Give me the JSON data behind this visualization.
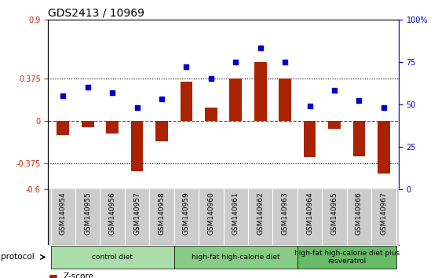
{
  "title": "GDS2413 / 10969",
  "samples": [
    "GSM140954",
    "GSM140955",
    "GSM140956",
    "GSM140957",
    "GSM140958",
    "GSM140959",
    "GSM140960",
    "GSM140961",
    "GSM140962",
    "GSM140963",
    "GSM140964",
    "GSM140965",
    "GSM140966",
    "GSM140967"
  ],
  "zscore": [
    -0.12,
    -0.05,
    -0.11,
    -0.44,
    -0.18,
    0.35,
    0.12,
    0.375,
    0.52,
    0.375,
    -0.32,
    -0.07,
    -0.31,
    -0.46
  ],
  "percentile": [
    55,
    60,
    57,
    48,
    53,
    72,
    65,
    75,
    83,
    75,
    49,
    58,
    52,
    48
  ],
  "ylim_left": [
    -0.6,
    0.9
  ],
  "ylim_right": [
    0,
    100
  ],
  "hlines": [
    0.375,
    -0.375
  ],
  "bar_color": "#aa2200",
  "scatter_color": "#0000cc",
  "background_color": "#ffffff",
  "protocol_groups": [
    {
      "label": "control diet",
      "start": 0,
      "end": 4,
      "color": "#aaddaa"
    },
    {
      "label": "high-fat high-calorie diet",
      "start": 5,
      "end": 9,
      "color": "#88cc88"
    },
    {
      "label": "high-fat high-calorie diet plus\nresveratrol",
      "start": 10,
      "end": 13,
      "color": "#66bb66"
    }
  ],
  "bar_width": 0.5,
  "scatter_size": 22,
  "left_label_color": "#cc2200",
  "right_label_color": "#0000cc",
  "zero_line_color": "#dd2200",
  "dotted_line_color": "#000000",
  "sample_bg_color": "#cccccc",
  "protocol_label_color": "#000000"
}
